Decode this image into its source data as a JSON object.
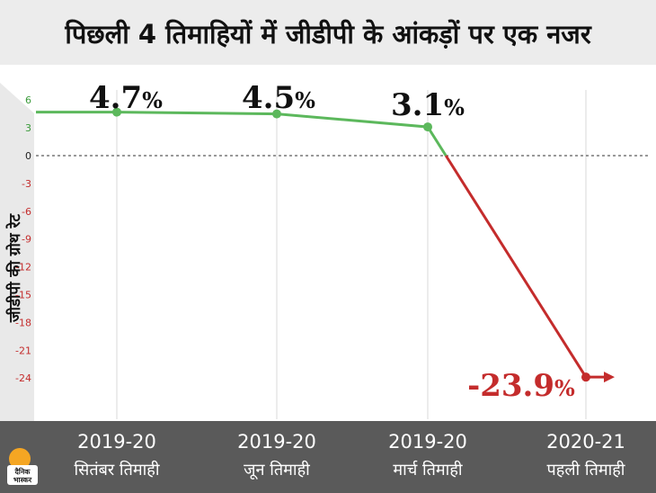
{
  "chart_data": {
    "type": "line",
    "title": "पिछली 4 तिमाहियों में जीडीपी के आंकड़ों पर एक नजर",
    "ylabel": "जीडीपी की ग्रोथ रेट",
    "xlabel": "",
    "ylim": [
      -27,
      7
    ],
    "yticks": [
      6,
      3,
      0,
      -3,
      -6,
      -9,
      -12,
      -15,
      -18,
      -21,
      -24
    ],
    "categories": [
      {
        "year": "2019-20",
        "quarter": "सितंबर तिमाही"
      },
      {
        "year": "2019-20",
        "quarter": "जून तिमाही"
      },
      {
        "year": "2019-20",
        "quarter": "मार्च तिमाही"
      },
      {
        "year": "2020-21",
        "quarter": "पहली तिमाही"
      }
    ],
    "values": [
      4.7,
      4.5,
      3.1,
      -23.9
    ],
    "value_labels": [
      "4.7",
      "4.5",
      "3.1",
      "-23.9"
    ],
    "unit_suffix": "%",
    "grid": "vertical",
    "colors": {
      "positive": "#5cb85c",
      "negative": "#c42c2c",
      "axis_band": "#5a5a5a",
      "zero_line": "#333333"
    }
  },
  "logo": {
    "line1": "दैनिक",
    "line2": "भास्कर"
  }
}
